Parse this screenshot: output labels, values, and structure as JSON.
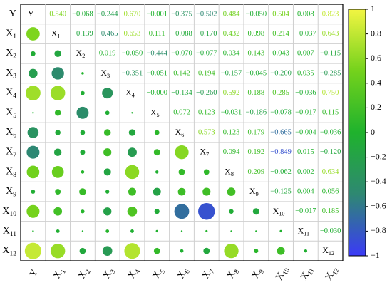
{
  "chart_data": {
    "type": "heatmap",
    "variables": [
      "Y",
      "X1",
      "X2",
      "X3",
      "X4",
      "X5",
      "X6",
      "X7",
      "X8",
      "X9",
      "X10",
      "X11",
      "X12"
    ],
    "matrix": [
      [
        1,
        0.54,
        -0.068,
        -0.244,
        0.67,
        -0.001,
        -0.375,
        -0.502,
        0.484,
        -0.05,
        0.504,
        0.008,
        0.823
      ],
      [
        0.54,
        1,
        -0.139,
        -0.465,
        0.653,
        0.111,
        -0.088,
        -0.17,
        0.432,
        0.098,
        0.214,
        -0.037,
        0.643
      ],
      [
        -0.068,
        -0.139,
        1,
        0.019,
        -0.05,
        -0.444,
        -0.07,
        -0.077,
        0.034,
        0.143,
        0.043,
        0.007,
        -0.115
      ],
      [
        -0.244,
        -0.465,
        0.019,
        1,
        -0.351,
        -0.051,
        0.142,
        0.194,
        -0.157,
        -0.045,
        -0.2,
        0.035,
        -0.285
      ],
      [
        0.67,
        0.653,
        -0.05,
        -0.351,
        1,
        -0.0,
        -0.134,
        -0.26,
        0.592,
        0.188,
        0.285,
        -0.036,
        0.75
      ],
      [
        -0.001,
        0.111,
        -0.444,
        -0.051,
        -0.0,
        1,
        0.072,
        0.123,
        -0.031,
        -0.186,
        -0.078,
        -0.017,
        0.115
      ],
      [
        -0.375,
        -0.088,
        -0.07,
        0.142,
        -0.134,
        0.072,
        1,
        0.573,
        0.123,
        0.179,
        -0.665,
        -0.004,
        -0.036
      ],
      [
        -0.502,
        -0.17,
        -0.077,
        0.194,
        -0.26,
        0.123,
        0.573,
        1,
        0.094,
        0.192,
        -0.849,
        0.015,
        -0.12
      ],
      [
        0.484,
        0.432,
        0.034,
        -0.157,
        0.592,
        -0.031,
        0.123,
        0.094,
        1,
        0.209,
        -0.062,
        0.002,
        0.634
      ],
      [
        -0.05,
        0.098,
        0.143,
        -0.045,
        0.188,
        -0.186,
        0.179,
        0.192,
        0.209,
        1,
        -0.125,
        0.004,
        0.056
      ],
      [
        0.504,
        0.214,
        0.043,
        -0.2,
        0.285,
        -0.078,
        -0.665,
        -0.849,
        -0.062,
        -0.125,
        1,
        -0.017,
        0.185
      ],
      [
        0.008,
        -0.037,
        0.007,
        0.035,
        -0.036,
        -0.017,
        -0.004,
        0.015,
        0.002,
        0.004,
        -0.017,
        1,
        -0.03
      ],
      [
        0.823,
        0.643,
        -0.115,
        -0.285,
        0.75,
        0.115,
        -0.036,
        -0.12,
        0.634,
        0.056,
        0.185,
        -0.03,
        1
      ]
    ],
    "upper_triangle": "numbers",
    "lower_triangle": "circles",
    "diagonal": "labels",
    "colorbar": {
      "range": [
        -1,
        1
      ],
      "ticks": [
        "1",
        "0.8",
        "0.6",
        "0.4",
        "0.2",
        "0",
        "−0.2",
        "−0.4",
        "−0.6",
        "−0.8",
        "−1"
      ],
      "colors": [
        "#f2f542",
        "#74d21c",
        "#1fb22d",
        "#2e8872",
        "#3b3af7"
      ]
    },
    "grid": true
  }
}
